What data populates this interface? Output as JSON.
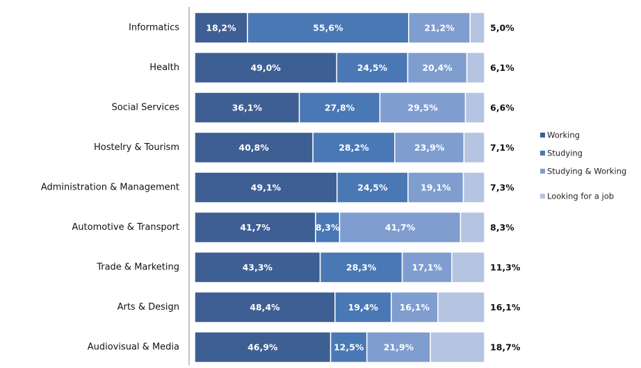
{
  "chart_data": {
    "type": "stacked_bar_horizontal",
    "categories": [
      "Informatics",
      "Health",
      "Social Services",
      "Hostelry & Tourism",
      "Administration & Management",
      "Automotive & Transport",
      "Trade & Marketing",
      "Arts & Design",
      "Audiovisual & Media"
    ],
    "series": [
      {
        "name": "Working",
        "color": "#3d5f93",
        "values": [
          18.2,
          49.0,
          36.1,
          40.8,
          49.1,
          41.7,
          43.3,
          48.4,
          46.9
        ],
        "value_labels": [
          "18,2%",
          "49,0%",
          "36,1%",
          "40,8%",
          "49,1%",
          "41,7%",
          "43,3%",
          "48,4%",
          "46,9%"
        ]
      },
      {
        "name": "Studying",
        "color": "#4a78b5",
        "values": [
          55.6,
          24.5,
          27.8,
          28.2,
          24.5,
          8.3,
          28.3,
          19.4,
          12.5
        ],
        "value_labels": [
          "55,6%",
          "24,5%",
          "27,8%",
          "28,2%",
          "24,5%",
          "8,3%",
          "28,3%",
          "19,4%",
          "12,5%"
        ]
      },
      {
        "name": "Studying & Working",
        "color": "#7f9ecf",
        "values": [
          21.2,
          20.4,
          29.5,
          23.9,
          19.1,
          41.7,
          17.1,
          16.1,
          21.9
        ],
        "value_labels": [
          "21,2%",
          "20,4%",
          "29,5%",
          "23,9%",
          "19,1%",
          "41,7%",
          "17,1%",
          "16,1%",
          "21,9%"
        ]
      },
      {
        "name": "Looking for a job",
        "color": "#b5c4e0",
        "values": [
          5.0,
          6.1,
          6.6,
          7.1,
          7.3,
          8.3,
          11.3,
          16.1,
          18.7
        ],
        "value_labels": [
          "5,0%",
          "6,1%",
          "6,6%",
          "7,1%",
          "7,3%",
          "8,3%",
          "11,3%",
          "16,1%",
          "18,7%"
        ]
      }
    ],
    "legend": "right"
  }
}
